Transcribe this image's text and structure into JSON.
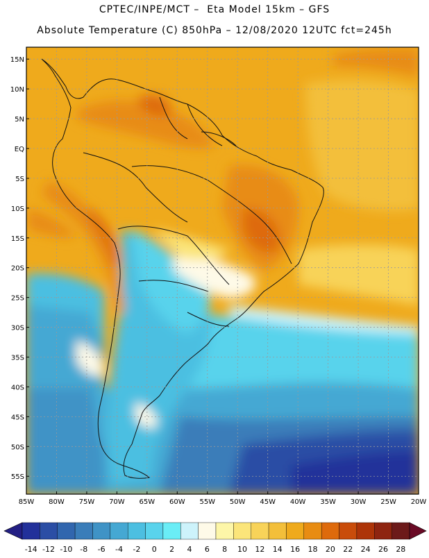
{
  "title": {
    "line1": "CPTEC/INPE/MCT –  Eta Model 15km – GFS",
    "line2": "Absolute Temperature (C) 850hPa – 12/08/2020 12UTC fct=245h"
  },
  "map": {
    "lon_range": [
      -85,
      -20
    ],
    "lat_range": [
      -58,
      17
    ],
    "lat_labels": [
      "15N",
      "10N",
      "5N",
      "EQ",
      "5S",
      "10S",
      "15S",
      "20S",
      "25S",
      "30S",
      "35S",
      "40S",
      "45S",
      "50S",
      "55S"
    ],
    "lat_values": [
      15,
      10,
      5,
      0,
      -5,
      -10,
      -15,
      -20,
      -25,
      -30,
      -35,
      -40,
      -45,
      -50,
      -55
    ],
    "lon_labels": [
      "85W",
      "80W",
      "75W",
      "70W",
      "65W",
      "60W",
      "55W",
      "50W",
      "45W",
      "40W",
      "35W",
      "30W",
      "25W",
      "20W"
    ],
    "lon_values": [
      -85,
      -80,
      -75,
      -70,
      -65,
      -60,
      -55,
      -50,
      -45,
      -40,
      -35,
      -30,
      -25,
      -20
    ]
  },
  "colorbar": {
    "labels": [
      "-14",
      "-12",
      "-10",
      "-8",
      "-6",
      "-4",
      "-2",
      "0",
      "2",
      "4",
      "6",
      "8",
      "10",
      "12",
      "14",
      "16",
      "18",
      "20",
      "22",
      "24",
      "26",
      "28"
    ],
    "colors": [
      "#22309a",
      "#2b4ea5",
      "#3166ae",
      "#3a7db9",
      "#3f93c6",
      "#45a8d3",
      "#4cbfe1",
      "#59d3ec",
      "#6aedf6",
      "#cdf3fb",
      "#fefae8",
      "#fdf6a8",
      "#fbe57a",
      "#f8d359",
      "#f3bf3a",
      "#efaa1c",
      "#e88c12",
      "#de6a0c",
      "#c94c0a",
      "#ad3408",
      "#8e2410",
      "#6c1a1a"
    ],
    "under_color": "#231f84",
    "over_color": "#6a0a25"
  }
}
